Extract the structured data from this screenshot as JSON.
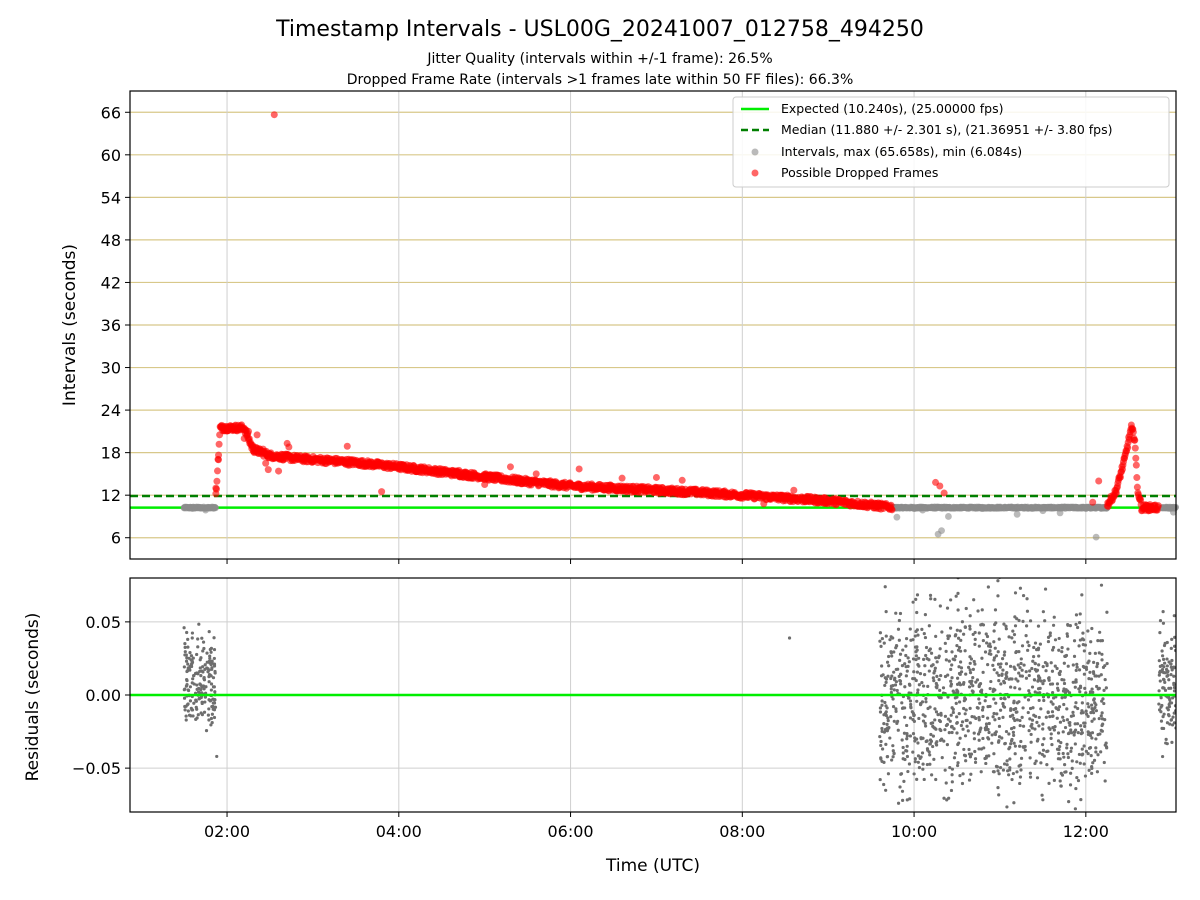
{
  "title": "Timestamp Intervals - USL00G_20241007_012758_494250",
  "subtitle1": "Jitter Quality (intervals within +/-1 frame): 26.5%",
  "subtitle2": "Dropped Frame Rate (intervals >1 frames late within 50 FF files): 66.3%",
  "colors": {
    "expected": "#00ee00",
    "median": "#007f00",
    "intervals": "#8c8c8c",
    "dropped": "#ff0000",
    "top_grid": "#d8c88a",
    "grid": "#cfcfcf",
    "residuals": "#6e6e6e"
  },
  "chart_data": [
    {
      "type": "scatter",
      "ylabel": "Intervals (seconds)",
      "xlabel": "",
      "x_unit": "hours UTC",
      "xlim": [
        0.87,
        13.05
      ],
      "ylim": [
        3.0,
        69.0
      ],
      "yticks": [
        6,
        12,
        18,
        24,
        30,
        36,
        42,
        48,
        54,
        60,
        66
      ],
      "ytick_labels": [
        "6",
        "12",
        "18",
        "24",
        "30",
        "36",
        "42",
        "48",
        "54",
        "60",
        "66"
      ],
      "xticks": [
        2,
        4,
        6,
        8,
        10,
        12
      ],
      "grid": true,
      "legend_placement": "upper right",
      "legend": [
        "Expected (10.240s), (25.00000 fps)",
        "Median (11.880 +/- 2.301 s), (21.36951 +/- 3.80 fps)",
        "Intervals, max (65.658s), min (6.084s)",
        "Possible Dropped Frames"
      ],
      "reference_lines": {
        "expected": 10.24,
        "median": 11.88
      },
      "series": [
        {
          "name": "Intervals, max (65.658s), min (6.084s)",
          "points": [
            [
              1.5,
              10.2
            ],
            [
              1.55,
              10.24
            ],
            [
              1.6,
              10.1
            ],
            [
              1.65,
              10.3
            ],
            [
              1.7,
              10.2
            ],
            [
              1.75,
              9.9
            ],
            [
              1.8,
              10.24
            ],
            [
              1.85,
              10.2
            ],
            [
              9.75,
              10.2
            ],
            [
              9.8,
              8.9
            ],
            [
              9.9,
              10.24
            ],
            [
              10.0,
              10.1
            ],
            [
              10.1,
              9.9
            ],
            [
              10.2,
              10.24
            ],
            [
              10.28,
              6.5
            ],
            [
              10.32,
              7.0
            ],
            [
              10.4,
              9.0
            ],
            [
              10.45,
              10.24
            ],
            [
              10.6,
              10.24
            ],
            [
              10.8,
              10.1
            ],
            [
              11.0,
              10.24
            ],
            [
              11.2,
              9.3
            ],
            [
              11.3,
              10.24
            ],
            [
              11.5,
              9.8
            ],
            [
              11.6,
              10.3
            ],
            [
              11.7,
              9.5
            ],
            [
              11.9,
              10.24
            ],
            [
              12.0,
              10.1
            ],
            [
              12.12,
              6.084
            ],
            [
              12.2,
              10.24
            ],
            [
              12.9,
              10.24
            ],
            [
              12.98,
              10.2
            ],
            [
              13.02,
              9.6
            ]
          ],
          "segments": [
            {
              "x0": 1.5,
              "x1": 1.87,
              "y": 10.24
            },
            {
              "x0": 9.75,
              "x1": 12.25,
              "y": 10.24
            },
            {
              "x0": 12.88,
              "x1": 13.05,
              "y": 10.24
            }
          ]
        },
        {
          "name": "Possible Dropped Frames",
          "points": [
            [
              1.87,
              13.0
            ],
            [
              1.9,
              17.0
            ],
            [
              1.93,
              21.5
            ],
            [
              1.96,
              21.7
            ],
            [
              2.0,
              21.6
            ],
            [
              2.05,
              21.4
            ],
            [
              2.1,
              21.5
            ],
            [
              2.15,
              21.2
            ],
            [
              2.2,
              20.0
            ],
            [
              2.25,
              21.0
            ],
            [
              2.3,
              19.0
            ],
            [
              2.35,
              20.5
            ],
            [
              2.42,
              18.5
            ],
            [
              2.45,
              16.5
            ],
            [
              2.48,
              15.6
            ],
            [
              2.55,
              65.658
            ],
            [
              2.6,
              15.4
            ],
            [
              2.7,
              19.3
            ],
            [
              2.72,
              18.8
            ],
            [
              3.4,
              18.9
            ],
            [
              3.8,
              12.5
            ],
            [
              4.7,
              15.5
            ],
            [
              5.0,
              13.5
            ],
            [
              5.3,
              16.0
            ],
            [
              5.6,
              15.0
            ],
            [
              6.1,
              15.7
            ],
            [
              6.6,
              14.4
            ],
            [
              7.0,
              14.5
            ],
            [
              7.3,
              14.1
            ],
            [
              8.6,
              12.7
            ],
            [
              8.25,
              10.8
            ],
            [
              10.25,
              13.8
            ],
            [
              10.3,
              13.3
            ],
            [
              10.35,
              12.3
            ],
            [
              12.08,
              11.0
            ],
            [
              12.15,
              14.0
            ],
            [
              12.68,
              10.24
            ],
            [
              12.75,
              10.24
            ]
          ],
          "trend": [
            [
              1.87,
              12.0
            ],
            [
              1.92,
              21.5
            ],
            [
              2.2,
              21.5
            ],
            [
              2.3,
              18.5
            ],
            [
              2.5,
              17.6
            ],
            [
              2.8,
              17.2
            ],
            [
              3.5,
              16.6
            ],
            [
              4.0,
              16.0
            ],
            [
              4.5,
              15.3
            ],
            [
              5.0,
              14.6
            ],
            [
              5.5,
              13.9
            ],
            [
              6.0,
              13.3
            ],
            [
              6.5,
              13.0
            ],
            [
              7.0,
              12.7
            ],
            [
              7.5,
              12.4
            ],
            [
              8.0,
              12.0
            ],
            [
              8.5,
              11.6
            ],
            [
              9.0,
              11.2
            ],
            [
              9.5,
              10.6
            ],
            [
              9.75,
              10.3
            ],
            [
              12.25,
              10.6
            ],
            [
              12.35,
              12.5
            ],
            [
              12.45,
              17.0
            ],
            [
              12.53,
              21.5
            ],
            [
              12.57,
              20.0
            ],
            [
              12.6,
              13.0
            ],
            [
              12.65,
              10.24
            ],
            [
              12.85,
              10.24
            ]
          ]
        }
      ]
    },
    {
      "type": "scatter",
      "ylabel": "Residuals (seconds)",
      "xlabel": "Time (UTC)",
      "x_unit": "hours UTC",
      "xlim": [
        0.87,
        13.05
      ],
      "ylim": [
        -0.08,
        0.08
      ],
      "yticks": [
        -0.05,
        0.0,
        0.05
      ],
      "ytick_labels": [
        "−0.05",
        "0.00",
        "0.05"
      ],
      "xticks": [
        2,
        4,
        6,
        8,
        10,
        12
      ],
      "xtick_labels": [
        "02:00",
        "04:00",
        "06:00",
        "08:00",
        "10:00",
        "12:00"
      ],
      "grid": true,
      "reference_line": 0.0,
      "clusters": [
        {
          "x": [
            1.5,
            1.87
          ],
          "y_spread": [
            -0.035,
            0.047
          ]
        },
        {
          "x": [
            9.6,
            12.25
          ],
          "y_spread": [
            -0.08,
            0.08
          ]
        },
        {
          "x": [
            12.85,
            13.05
          ],
          "y_spread": [
            -0.045,
            0.055
          ]
        }
      ],
      "points": [
        [
          8.55,
          0.039
        ],
        [
          1.88,
          -0.042
        ],
        [
          1.5,
          0.046
        ],
        [
          12.9,
          0.057
        ]
      ]
    }
  ]
}
